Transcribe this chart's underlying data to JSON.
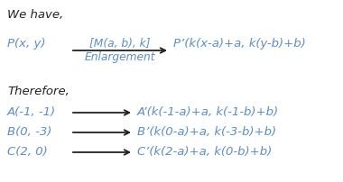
{
  "background_color": "#ffffff",
  "text_color": "#5b8fc9",
  "dark_color": "#222222",
  "we_have": "We have,",
  "therefore": "Therefore,",
  "p_left": "P(x, y)",
  "arrow_label_top": "[M(a, b), k]",
  "arrow_label_bottom": "Enlargement",
  "p_right": "P’(k(x-a)+a, k(y-b)+b)",
  "rows": [
    {
      "left": "A(-1, -1)",
      "right": "A’(k(-1-a)+a, k(-1-b)+b)"
    },
    {
      "left": "B(0, -3)",
      "right": "B’(k(0-a)+a, k(-3-b)+b)"
    },
    {
      "left": "C(2, 0)",
      "right": "C’(k(2-a)+a, k(0-b)+b)"
    }
  ],
  "font_size_main": 9.5,
  "font_size_label": 8.8,
  "fig_width": 3.8,
  "fig_height": 2.03,
  "dpi": 100
}
